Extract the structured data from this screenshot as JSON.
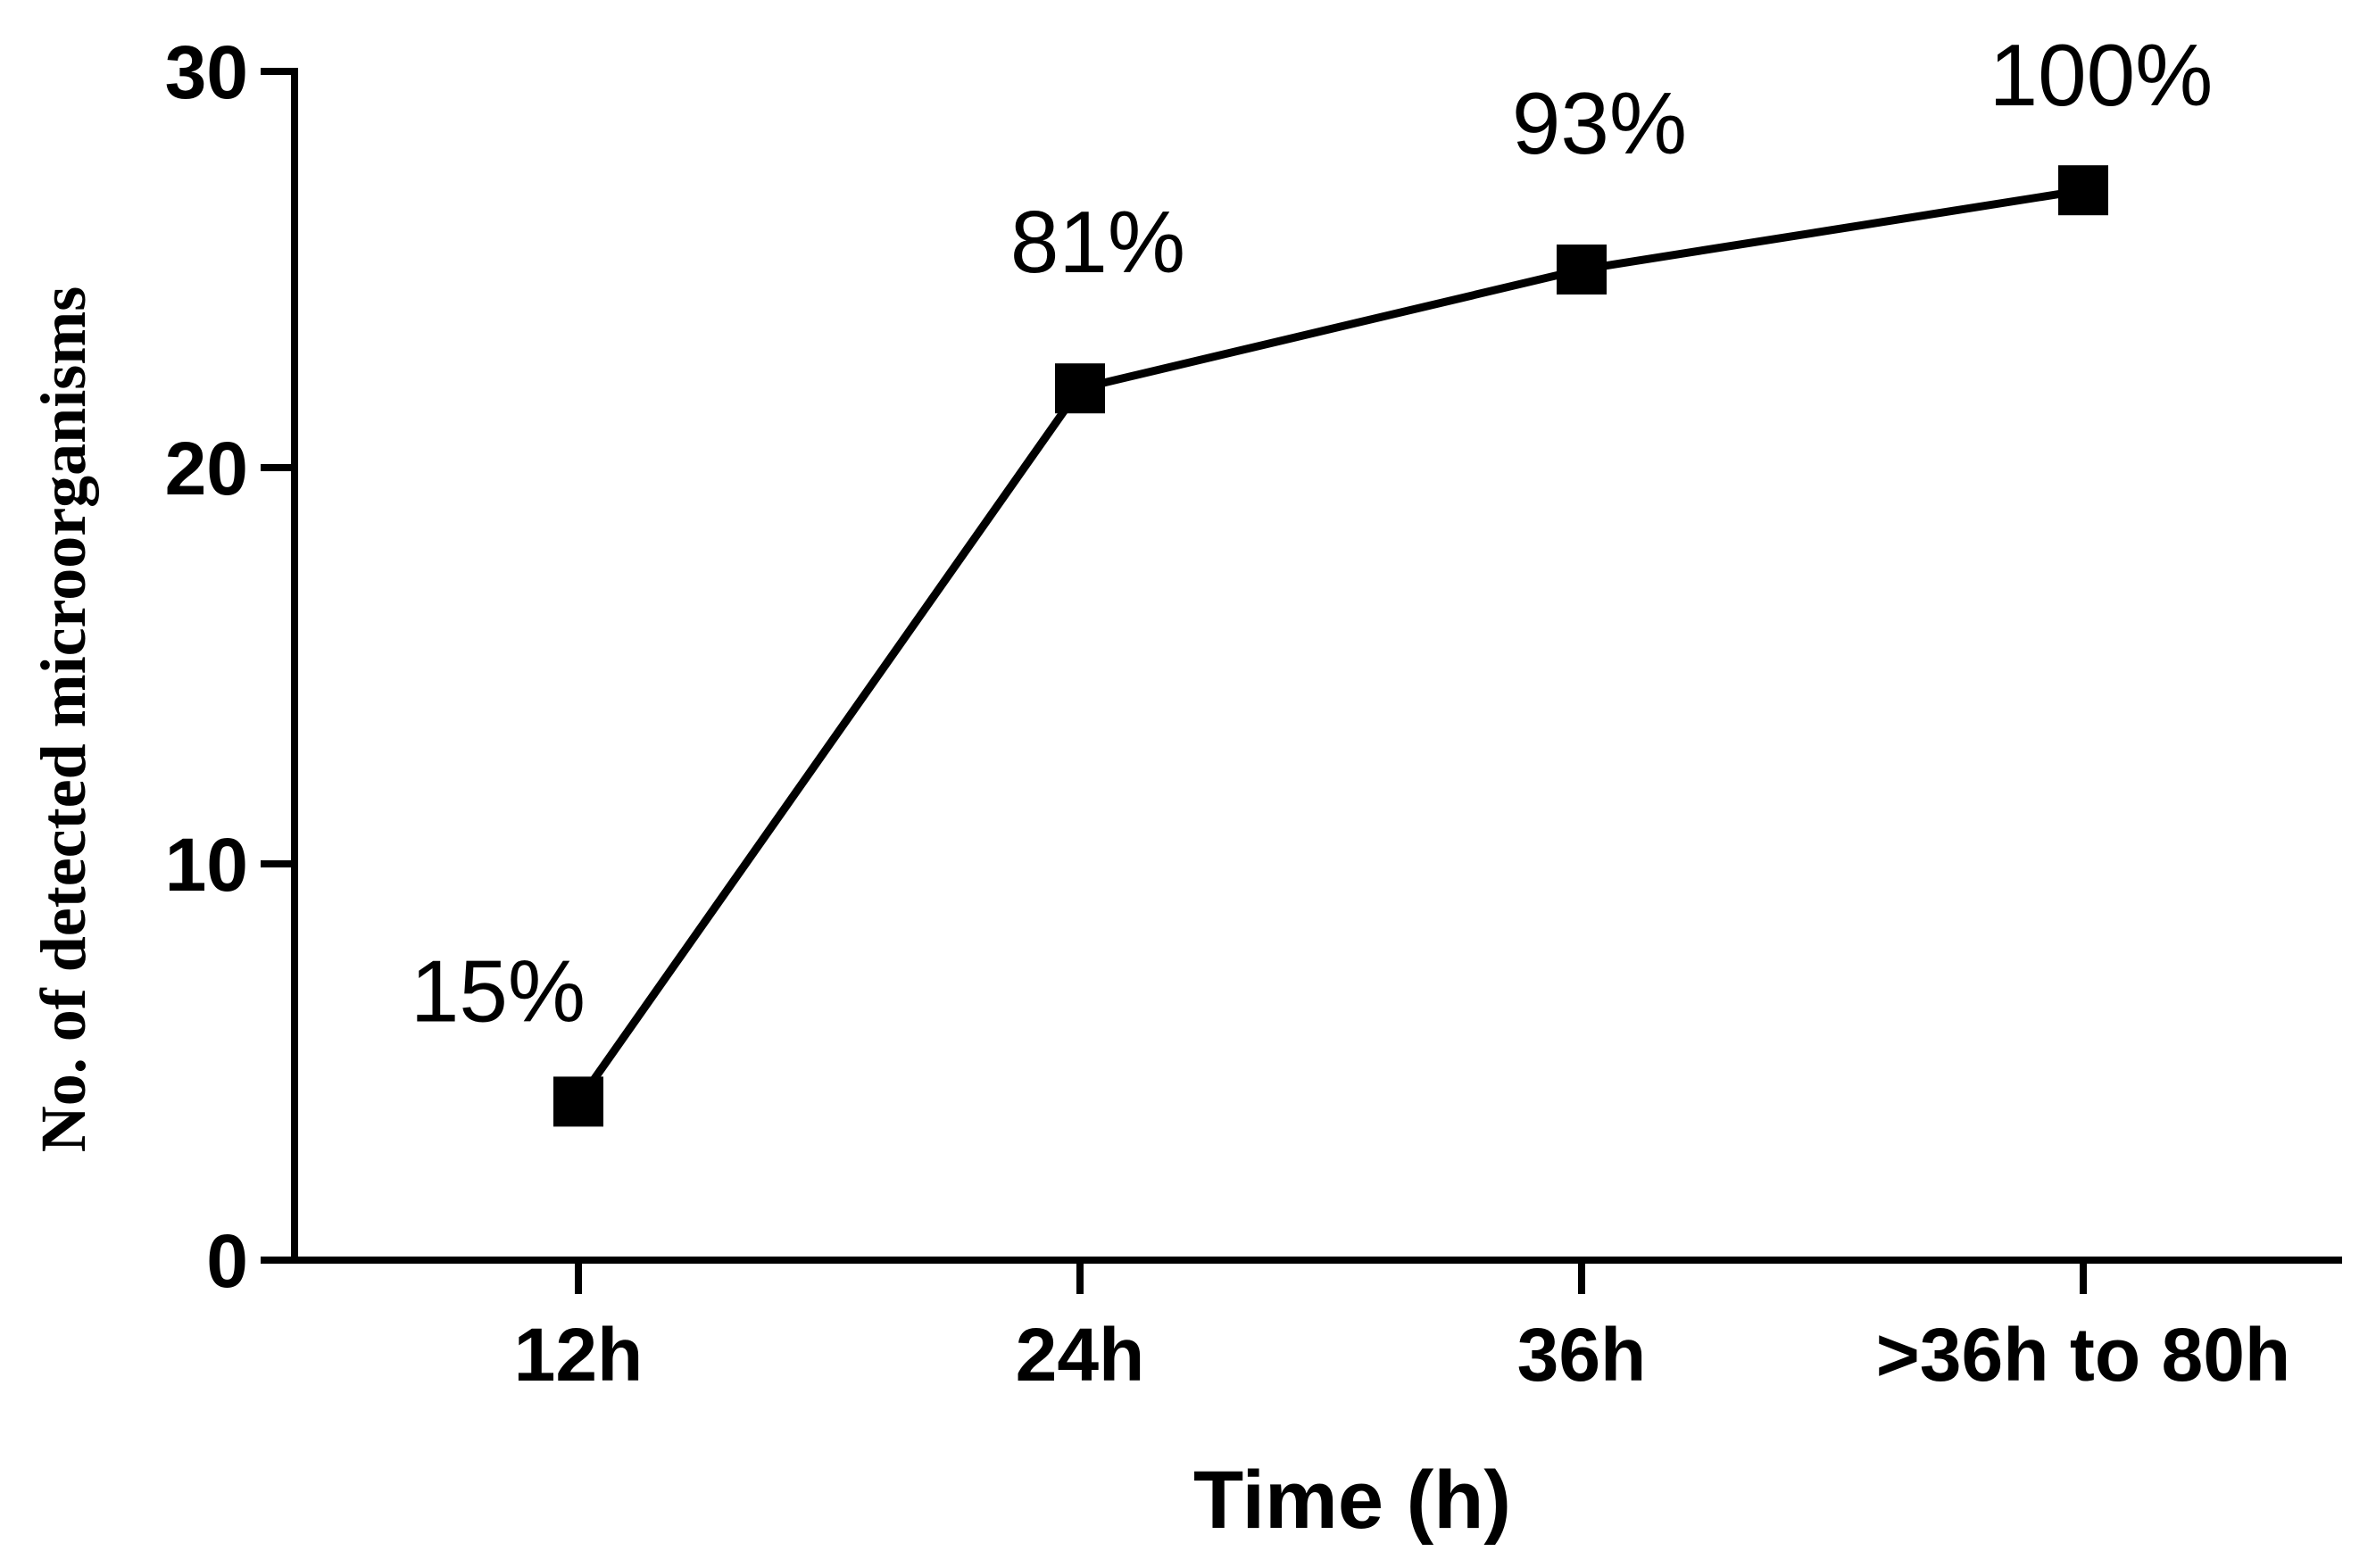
{
  "chart_data": {
    "type": "line",
    "title": "",
    "xlabel": "Time (h)",
    "ylabel": "No. of detected microorganisms",
    "categories": [
      "12h",
      "24h",
      "36h",
      ">36h to 80h"
    ],
    "series": [
      {
        "values": [
          4,
          22,
          25,
          27
        ],
        "labels": [
          "15%",
          "81%",
          "93%",
          "100%"
        ],
        "marker": "square",
        "color": "#000000"
      }
    ],
    "ylim": [
      0,
      30
    ],
    "yticks": [
      "0",
      "10",
      "20",
      "30"
    ],
    "grid": false,
    "legend": "none"
  }
}
